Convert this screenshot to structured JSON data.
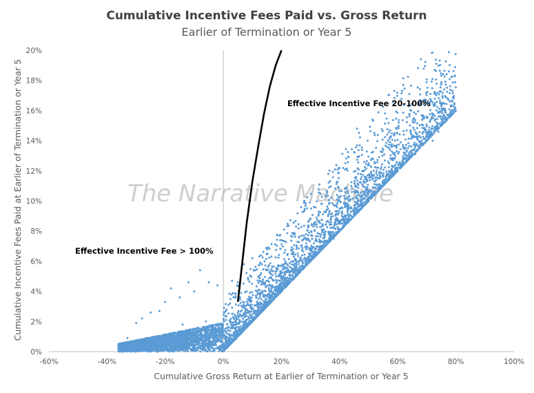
{
  "chart_data": {
    "type": "scatter",
    "title": "Cumulative Incentive Fees Paid vs. Gross Return",
    "subtitle": "Earlier of Termination or Year 5",
    "xlabel": "Cumulative Gross Return at Earlier of Termination or Year 5",
    "ylabel": "Cumulative Incentive Fees Paid at Earlier of Termination or Year 5",
    "xlim": [
      -0.6,
      1.0
    ],
    "ylim": [
      0,
      0.2
    ],
    "x_ticks": [
      "-60%",
      "-40%",
      "-20%",
      "0%",
      "20%",
      "40%",
      "60%",
      "80%",
      "100%"
    ],
    "y_ticks": [
      "0%",
      "2%",
      "4%",
      "6%",
      "8%",
      "10%",
      "12%",
      "14%",
      "16%",
      "18%",
      "20%"
    ],
    "grid": false,
    "point_color": "#5b9bd5",
    "line_color": "#000000",
    "watermark": "The Narrative Machine",
    "annotations": [
      {
        "text": "Effective Incentive Fee 20-100%",
        "x": 0.22,
        "y": 0.163
      },
      {
        "text": "Effective Incentive Fee > 100%",
        "x": -0.51,
        "y": 0.065
      }
    ],
    "line_series": {
      "x": [
        0.05,
        0.06,
        0.08,
        0.1,
        0.12,
        0.14,
        0.16,
        0.18,
        0.2
      ],
      "y": [
        0.033,
        0.05,
        0.085,
        0.113,
        0.136,
        0.158,
        0.176,
        0.19,
        0.2
      ]
    },
    "scatter_series": {
      "x": [
        0.8,
        0.78,
        0.77,
        0.74,
        0.72,
        0.69,
        0.66,
        0.63,
        0.6,
        0.56,
        0.52,
        0.5,
        0.48,
        0.46,
        0.46,
        0.44,
        0.42,
        0.4,
        0.36,
        0.3,
        0.28,
        0.25,
        0.2,
        0.15,
        0.1,
        0.07,
        0.05,
        0.03,
        -0.02,
        -0.05,
        -0.08,
        -0.1,
        -0.12,
        -0.15,
        -0.18,
        -0.2,
        -0.22,
        -0.25,
        -0.28,
        -0.3,
        -0.35,
        -0.36,
        -0.33,
        0.08,
        0.2,
        0.3,
        0.35,
        0.4,
        0.55,
        0.6,
        0.7,
        0.65,
        0.5,
        0.45,
        0.38,
        0.32,
        0.24,
        0.16,
        0.12,
        0.04,
        0.0,
        -0.04,
        -0.06,
        -0.14,
        -0.18,
        0.26,
        0.34,
        0.42,
        0.54,
        0.62
      ],
      "y": [
        0.16,
        0.157,
        0.155,
        0.146,
        0.14,
        0.138,
        0.131,
        0.127,
        0.122,
        0.116,
        0.126,
        0.125,
        0.12,
        0.137,
        0.148,
        0.11,
        0.106,
        0.1,
        0.095,
        0.088,
        0.094,
        0.083,
        0.074,
        0.065,
        0.062,
        0.058,
        0.046,
        0.047,
        0.044,
        0.046,
        0.054,
        0.04,
        0.046,
        0.036,
        0.042,
        0.033,
        0.027,
        0.026,
        0.022,
        0.019,
        0.003,
        0.005,
        0.009,
        0.04,
        0.05,
        0.06,
        0.07,
        0.08,
        0.11,
        0.12,
        0.14,
        0.13,
        0.1,
        0.09,
        0.075,
        0.065,
        0.055,
        0.04,
        0.03,
        0.02,
        0.01,
        0.015,
        0.02,
        0.018,
        0.01,
        0.06,
        0.07,
        0.085,
        0.108,
        0.124
      ]
    }
  }
}
